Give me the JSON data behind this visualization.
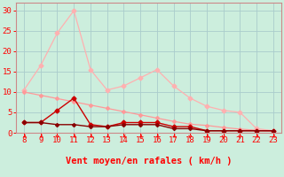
{
  "x": [
    8,
    9,
    10,
    11,
    12,
    13,
    14,
    15,
    16,
    17,
    18,
    19,
    20,
    21,
    22,
    23
  ],
  "series_light_pink": [
    10.5,
    16.5,
    24.5,
    30,
    15.5,
    10.5,
    11.5,
    13.5,
    15.5,
    11.5,
    8.5,
    6.5,
    5.5,
    5.0,
    1.0,
    0.5
  ],
  "series_pink_line": [
    10.0,
    9.2,
    8.4,
    7.6,
    6.8,
    6.0,
    5.2,
    4.4,
    3.6,
    2.8,
    2.1,
    1.8,
    1.3,
    0.9,
    0.6,
    0.4
  ],
  "series_mid_red": [
    2.5,
    2.5,
    5.5,
    8.5,
    2.0,
    1.5,
    2.5,
    2.5,
    2.5,
    1.5,
    1.5,
    0.5,
    0.5,
    0.5,
    0.5,
    0.5
  ],
  "series_dark_red": [
    2.5,
    2.5,
    2.0,
    2.0,
    1.5,
    1.5,
    2.0,
    2.0,
    2.0,
    1.0,
    1.0,
    0.5,
    0.5,
    0.5,
    0.5,
    0.5
  ],
  "color_light_pink": "#ffb0b0",
  "color_pink_line": "#ff9999",
  "color_mid_red": "#cc0000",
  "color_dark_red": "#880000",
  "bg_color": "#cceedd",
  "grid_color": "#aacccc",
  "xlabel": "Vent moyen/en rafales ( km/h )",
  "yticks": [
    0,
    5,
    10,
    15,
    20,
    25,
    30
  ],
  "ylim": [
    0,
    32
  ],
  "xlim": [
    7.5,
    23.5
  ]
}
